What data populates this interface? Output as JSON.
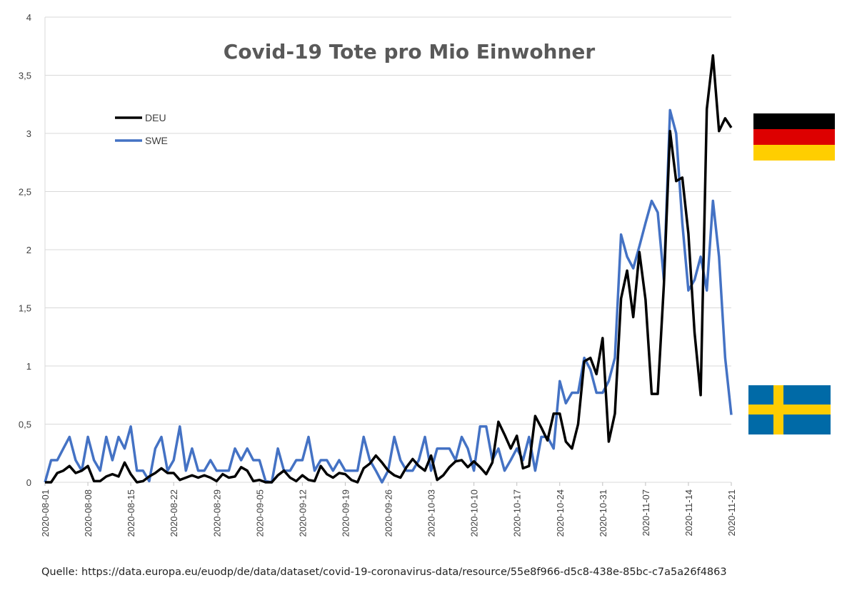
{
  "source_note": "Quelle: https://data.europa.eu/euodp/de/data/dataset/covid-19-coronavirus-data/resource/55e8f966-d5c8-438e-85bc-c7a5a26f4863",
  "colors": {
    "DEU": "#000000",
    "SWE": "#4472C4",
    "grid": "#d9d9d9",
    "title": "#595959"
  },
  "flags": [
    {
      "name": "germany-flag",
      "colors": [
        "#000000",
        "#DD0000",
        "#FFCE00"
      ]
    },
    {
      "name": "sweden-flag",
      "colors": [
        "#006AA7",
        "#FECC00"
      ]
    }
  ],
  "chart_data": {
    "type": "line",
    "title": "Covid-19 Tote pro Mio Einwohner",
    "xlabel": "",
    "ylabel": "",
    "ylim": [
      0,
      4
    ],
    "yticks": [
      "0",
      "0,5",
      "1",
      "1,5",
      "2",
      "2,5",
      "3",
      "3,5",
      "4"
    ],
    "xticks": [
      "2020-08-01",
      "2020-08-08",
      "2020-08-15",
      "2020-08-22",
      "2020-08-29",
      "2020-09-05",
      "2020-09-12",
      "2020-09-19",
      "2020-09-26",
      "2020-10-03",
      "2020-10-10",
      "2020-10-17",
      "2020-10-24",
      "2020-10-31",
      "2020-11-07",
      "2020-11-14",
      "2020-11-21"
    ],
    "x_start": "2020-08-01",
    "x_end": "2020-11-21",
    "grid": true,
    "legend": "top-left",
    "series": [
      {
        "name": "DEU",
        "values": [
          0,
          0,
          0.08,
          0.1,
          0.14,
          0.08,
          0.1,
          0.14,
          0.01,
          0.01,
          0.05,
          0.07,
          0.05,
          0.17,
          0.07,
          0,
          0.01,
          0.05,
          0.08,
          0.12,
          0.08,
          0.08,
          0.02,
          0.04,
          0.06,
          0.04,
          0.06,
          0.04,
          0.01,
          0.07,
          0.04,
          0.05,
          0.13,
          0.1,
          0.01,
          0.02,
          0,
          0,
          0.06,
          0.1,
          0.04,
          0.01,
          0.06,
          0.02,
          0.01,
          0.14,
          0.07,
          0.04,
          0.08,
          0.07,
          0.02,
          0,
          0.12,
          0.16,
          0.23,
          0.17,
          0.1,
          0.06,
          0.04,
          0.13,
          0.2,
          0.14,
          0.1,
          0.23,
          0.02,
          0.06,
          0.13,
          0.18,
          0.19,
          0.13,
          0.18,
          0.13,
          0.07,
          0.17,
          0.52,
          0.41,
          0.29,
          0.4,
          0.12,
          0.14,
          0.57,
          0.47,
          0.36,
          0.59,
          0.59,
          0.35,
          0.29,
          0.5,
          1.04,
          1.07,
          0.93,
          1.24,
          0.35,
          0.59,
          1.58,
          1.82,
          1.42,
          1.98,
          1.57,
          0.76,
          0.76,
          1.7,
          3.02,
          2.59,
          2.62,
          2.14,
          1.29,
          0.75,
          3.21,
          3.67,
          3.02,
          3.13,
          3.05
        ]
      },
      {
        "name": "SWE",
        "values": [
          0,
          0.19,
          0.19,
          0.29,
          0.39,
          0.19,
          0.1,
          0.39,
          0.19,
          0.1,
          0.39,
          0.19,
          0.39,
          0.29,
          0.48,
          0.1,
          0.1,
          0.01,
          0.29,
          0.39,
          0.1,
          0.19,
          0.48,
          0.1,
          0.29,
          0.1,
          0.1,
          0.19,
          0.1,
          0.1,
          0.1,
          0.29,
          0.19,
          0.29,
          0.19,
          0.19,
          0.01,
          0,
          0.29,
          0.1,
          0.1,
          0.19,
          0.19,
          0.39,
          0.1,
          0.19,
          0.19,
          0.1,
          0.19,
          0.1,
          0.1,
          0.1,
          0.39,
          0.19,
          0.1,
          0,
          0.1,
          0.39,
          0.19,
          0.1,
          0.1,
          0.19,
          0.39,
          0.1,
          0.29,
          0.29,
          0.29,
          0.19,
          0.39,
          0.29,
          0.1,
          0.48,
          0.48,
          0.19,
          0.29,
          0.1,
          0.19,
          0.29,
          0.19,
          0.39,
          0.1,
          0.39,
          0.39,
          0.29,
          0.87,
          0.68,
          0.77,
          0.77,
          1.07,
          0.97,
          0.77,
          0.77,
          0.87,
          1.07,
          2.13,
          1.94,
          1.84,
          2.03,
          2.23,
          2.42,
          2.32,
          1.74,
          3.2,
          3.0,
          2.23,
          1.65,
          1.74,
          1.94,
          1.65,
          2.42,
          1.94,
          1.07,
          0.58
        ]
      }
    ]
  }
}
